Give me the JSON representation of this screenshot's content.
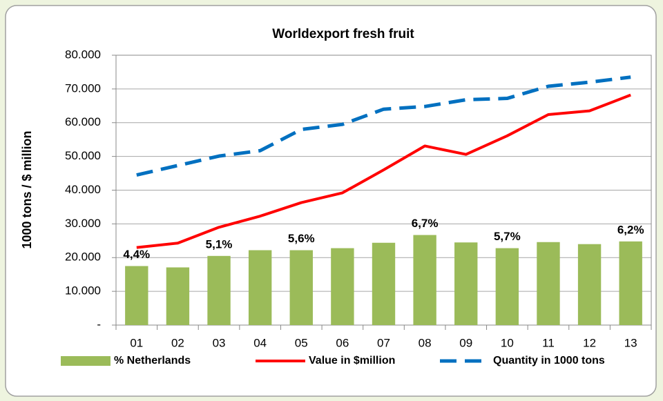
{
  "chart_data": {
    "type": "bar",
    "title": "Worldexport fresh fruit",
    "y_label": "1000  tons / $ million",
    "categories": [
      "01",
      "02",
      "03",
      "04",
      "05",
      "06",
      "07",
      "08",
      "09",
      "10",
      "11",
      "12",
      "13"
    ],
    "series": [
      {
        "name": "% Netherlands",
        "type": "bar",
        "color": "#9bbb59",
        "values": [
          17500,
          17100,
          20500,
          22200,
          22200,
          22800,
          24400,
          26700,
          24500,
          22800,
          24600,
          24000,
          24800
        ]
      },
      {
        "name": "Value in $million",
        "type": "line",
        "color": "#ff0000",
        "values": [
          23000,
          24300,
          29000,
          32300,
          36300,
          39200,
          46000,
          53100,
          50600,
          56100,
          62400,
          63500,
          68200
        ]
      },
      {
        "name": "Quantity in 1000 tons",
        "type": "line",
        "color": "#0070c0",
        "dashed": true,
        "values": [
          44500,
          47300,
          50100,
          51700,
          58000,
          59500,
          64000,
          64800,
          66800,
          67200,
          70800,
          72000,
          73500
        ]
      }
    ],
    "annotations": [
      {
        "category": "01",
        "text": "4,4%"
      },
      {
        "category": "03",
        "text": "5,1%"
      },
      {
        "category": "05",
        "text": "5,6%"
      },
      {
        "category": "08",
        "text": "6,7%"
      },
      {
        "category": "10",
        "text": "5,7%"
      },
      {
        "category": "13",
        "text": "6,2%"
      }
    ],
    "ylim": [
      0,
      80000
    ],
    "yticks": [
      {
        "value": 0,
        "label": "-"
      },
      {
        "value": 10000,
        "label": "10.000"
      },
      {
        "value": 20000,
        "label": "20.000"
      },
      {
        "value": 30000,
        "label": "30.000"
      },
      {
        "value": 40000,
        "label": "40.000"
      },
      {
        "value": 50000,
        "label": "50.000"
      },
      {
        "value": 60000,
        "label": "60.000"
      },
      {
        "value": 70000,
        "label": "70.000"
      },
      {
        "value": 80000,
        "label": "80.000"
      }
    ],
    "grid": true,
    "legend": "bottom"
  }
}
